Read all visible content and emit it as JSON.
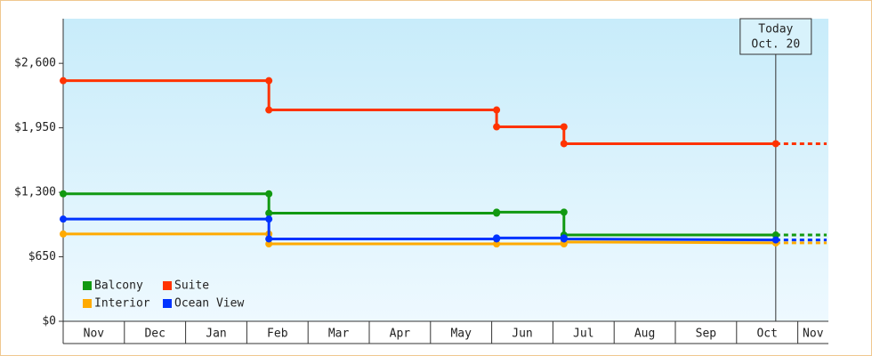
{
  "chart_data": {
    "type": "step-line",
    "categories": [
      "Nov",
      "Dec",
      "Jan",
      "Feb",
      "Mar",
      "Apr",
      "May",
      "Jun",
      "Jul",
      "Aug",
      "Sep",
      "Oct",
      "Nov"
    ],
    "xlim": [
      0,
      12.5
    ],
    "x": [
      0,
      3.36,
      3.36,
      7.08,
      7.08,
      8.18,
      8.18,
      11.64
    ],
    "series": [
      {
        "name": "Balcony",
        "color": "#119911",
        "values": [
          1285,
          1285,
          1090,
          1090,
          1100,
          1100,
          870,
          870
        ]
      },
      {
        "name": "Suite",
        "color": "#ff3300",
        "values": [
          2425,
          2425,
          2130,
          2130,
          1960,
          1960,
          1790,
          1790
        ]
      },
      {
        "name": "Interior",
        "color": "#ffaa00",
        "values": [
          880,
          880,
          780,
          780,
          780,
          780,
          800,
          790
        ]
      },
      {
        "name": "Ocean View",
        "color": "#0033ff",
        "values": [
          1030,
          1030,
          830,
          830,
          840,
          840,
          830,
          820
        ]
      }
    ],
    "ylim": [
      0,
      3050
    ],
    "yticks": [
      {
        "value": 0,
        "label": "$0"
      },
      {
        "value": 650,
        "label": "$650"
      },
      {
        "value": 1300,
        "label": "$1,300"
      },
      {
        "value": 1950,
        "label": "$1,950"
      },
      {
        "value": 2600,
        "label": "$2,600"
      }
    ],
    "annotation": {
      "x": 11.64,
      "lines": [
        "Today",
        "Oct. 20"
      ]
    },
    "legend": "bottom-left"
  }
}
